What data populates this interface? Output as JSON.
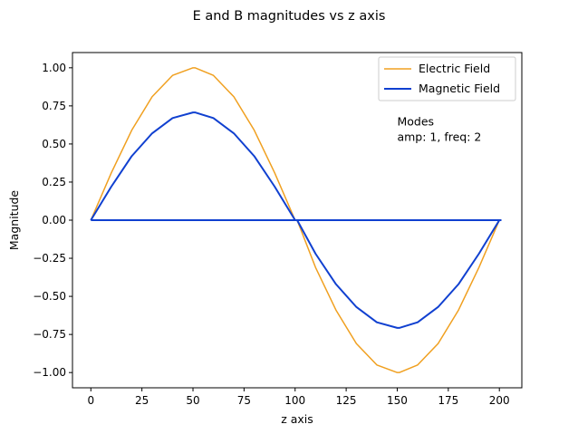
{
  "chart_data": {
    "type": "line",
    "title": "E and B magnitudes vs z axis",
    "xlabel": "z axis",
    "ylabel": "Magnitude",
    "xlim": [
      -9,
      211
    ],
    "ylim": [
      -1.1,
      1.1
    ],
    "xticks": [
      0,
      25,
      50,
      75,
      100,
      125,
      150,
      175,
      200
    ],
    "yticks": [
      -1.0,
      -0.75,
      -0.5,
      -0.25,
      0.0,
      0.25,
      0.5,
      0.75,
      1.0
    ],
    "ytick_labels": [
      "−1.00",
      "−0.75",
      "−0.50",
      "−0.25",
      "0.00",
      "0.25",
      "0.50",
      "0.75",
      "1.00"
    ],
    "grid": false,
    "legend_position": "upper-right",
    "series": [
      {
        "name": "Electric Field",
        "color": "#f0a020",
        "x": [
          0,
          10,
          20,
          30,
          40,
          50,
          51,
          60,
          70,
          80,
          90,
          100,
          101,
          110,
          120,
          130,
          140,
          150,
          151,
          160,
          170,
          180,
          190,
          200,
          201
        ],
        "y": [
          0.0,
          0.31,
          0.59,
          0.81,
          0.95,
          1.0,
          1.0,
          0.95,
          0.81,
          0.59,
          0.31,
          0.0,
          0.0,
          -0.31,
          -0.59,
          -0.81,
          -0.95,
          -1.0,
          -1.0,
          -0.95,
          -0.81,
          -0.59,
          -0.31,
          0.0,
          0.0
        ]
      },
      {
        "name": "Magnetic Field",
        "color": "#1040d0",
        "x": [
          0,
          10,
          20,
          30,
          40,
          50,
          51,
          60,
          70,
          80,
          90,
          100,
          101,
          110,
          120,
          130,
          140,
          150,
          151,
          160,
          170,
          180,
          190,
          200,
          201
        ],
        "y": [
          0.0,
          0.22,
          0.42,
          0.57,
          0.67,
          0.707,
          0.707,
          0.67,
          0.57,
          0.42,
          0.22,
          0.0,
          0.0,
          -0.22,
          -0.42,
          -0.57,
          -0.67,
          -0.707,
          -0.707,
          -0.67,
          -0.57,
          -0.42,
          -0.22,
          0.0,
          0.0
        ]
      }
    ],
    "zero_line": {
      "x": [
        0,
        201
      ],
      "y": [
        0,
        0
      ],
      "color": "#1040d0"
    },
    "annotations": [
      {
        "text": "Modes",
        "x": 150,
        "y": 0.62
      },
      {
        "text": "amp: 1, freq: 2",
        "x": 150,
        "y": 0.52
      }
    ]
  }
}
